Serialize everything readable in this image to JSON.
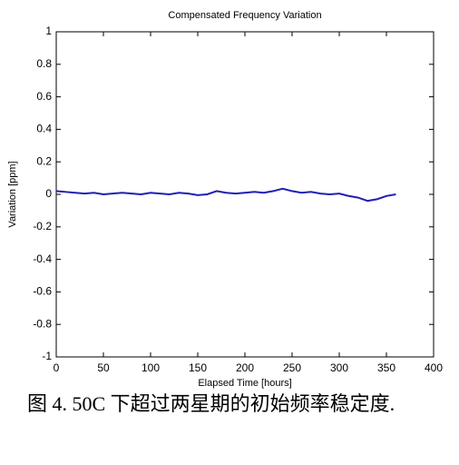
{
  "chart_data": {
    "type": "line",
    "title": "Compensated Frequency Variation",
    "x_label": "Elapsed Time [hours]",
    "y_label": "Variation [ppm]",
    "x": [
      0,
      10,
      20,
      30,
      40,
      50,
      60,
      70,
      80,
      90,
      100,
      110,
      120,
      130,
      140,
      150,
      160,
      170,
      180,
      190,
      200,
      210,
      220,
      230,
      240,
      250,
      260,
      270,
      280,
      290,
      300,
      310,
      320,
      330,
      340,
      350,
      360
    ],
    "values": [
      0.02,
      0.015,
      0.01,
      0.005,
      0.01,
      0.0,
      0.005,
      0.01,
      0.005,
      0.0,
      0.01,
      0.005,
      0.0,
      0.01,
      0.005,
      -0.005,
      0.0,
      0.02,
      0.01,
      0.005,
      0.01,
      0.015,
      0.01,
      0.02,
      0.035,
      0.02,
      0.01,
      0.015,
      0.005,
      0.0,
      0.005,
      -0.01,
      -0.02,
      -0.04,
      -0.03,
      -0.01,
      0.0
    ],
    "color": "#1f1fb4",
    "xlim": [
      0,
      400
    ],
    "xticks": [
      0,
      50,
      100,
      150,
      200,
      250,
      300,
      350,
      400
    ],
    "ylim": [
      -1,
      1
    ],
    "yticks": [
      -1,
      -0.8,
      -0.6,
      -0.4,
      -0.2,
      0,
      0.2,
      0.4,
      0.6,
      0.8,
      1
    ],
    "grid": false,
    "caption": "图 4.   50C 下超过两星期的初始频率稳定度."
  }
}
